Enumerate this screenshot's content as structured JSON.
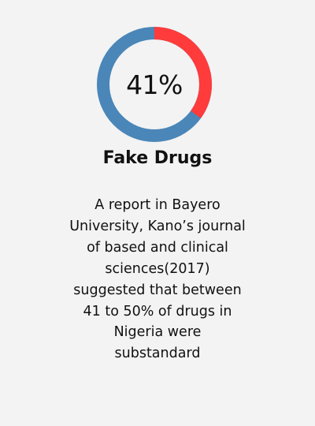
{
  "stat": {
    "percent_value": 41,
    "percent_label": "41%",
    "colors": {
      "accent": "#ff3b3b",
      "primary": "#4a86b8",
      "background": "#f3f3f3",
      "text": "#111111"
    }
  },
  "card": {
    "title": "Fake Drugs",
    "body_lines": [
      "A report in Bayero",
      "University, Kano’s journal",
      "of based and clinical",
      "sciences(2017)",
      "suggested that between",
      "41 to 50% of drugs in",
      "Nigeria were",
      "substandard"
    ]
  }
}
